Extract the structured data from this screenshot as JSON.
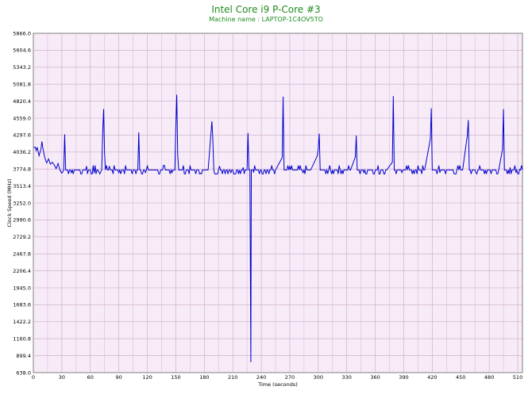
{
  "colors": {
    "title": "#1e8c1e",
    "plot_background": "#f7ebf7",
    "grid": "#c9a8c9",
    "line": "#0000cc"
  },
  "chart_data": {
    "type": "line",
    "title": "Intel Core i9 P-Core #3",
    "subtitle": "Machine name : LAPTOP-1C4OV5TO",
    "xlabel": "Time (seconds)",
    "ylabel": "Clock Speed (MHz)",
    "xlim": [
      0,
      515
    ],
    "ylim": [
      638.0,
      5866.0
    ],
    "x_ticks": [
      0,
      30,
      60,
      90,
      120,
      150,
      180,
      210,
      240,
      270,
      300,
      330,
      360,
      390,
      420,
      450,
      480,
      510
    ],
    "y_ticks": [
      "638.0",
      "899.4",
      "1160.8",
      "1422.2",
      "1683.6",
      "1945.0",
      "2206.4",
      "2467.8",
      "2729.2",
      "2990.6",
      "3252.0",
      "3513.4",
      "3774.8",
      "4036.2",
      "4297.6",
      "4559.0",
      "4820.4",
      "5081.8",
      "5343.2",
      "5604.6",
      "5866.0"
    ],
    "grid": true,
    "baseline": 3760,
    "series": [
      {
        "values": [
          [
            0,
            4110
          ],
          [
            2,
            4110
          ],
          [
            3,
            4060
          ],
          [
            4,
            4110
          ],
          [
            6,
            3980
          ],
          [
            8,
            4080
          ],
          [
            9,
            4200
          ],
          [
            10,
            4100
          ],
          [
            12,
            3950
          ],
          [
            14,
            3870
          ],
          [
            16,
            3930
          ],
          [
            18,
            3850
          ],
          [
            20,
            3880
          ],
          [
            22,
            3840
          ],
          [
            24,
            3780
          ],
          [
            26,
            3860
          ],
          [
            28,
            3760
          ],
          [
            30,
            3710
          ],
          [
            32,
            3760
          ],
          [
            33,
            4310
          ],
          [
            34,
            3760
          ],
          [
            40,
            3720
          ],
          [
            44,
            3760
          ],
          [
            50,
            3700
          ],
          [
            55,
            3760
          ],
          [
            56,
            3820
          ],
          [
            60,
            3760
          ],
          [
            64,
            3710
          ],
          [
            68,
            3760
          ],
          [
            70,
            3700
          ],
          [
            72,
            3760
          ],
          [
            73,
            4330
          ],
          [
            74,
            4700
          ],
          [
            75,
            4000
          ],
          [
            76,
            3760
          ],
          [
            80,
            3820
          ],
          [
            86,
            3760
          ],
          [
            90,
            3720
          ],
          [
            98,
            3760
          ],
          [
            104,
            3700
          ],
          [
            110,
            3760
          ],
          [
            111,
            4340
          ],
          [
            112,
            3760
          ],
          [
            118,
            3720
          ],
          [
            126,
            3760
          ],
          [
            132,
            3700
          ],
          [
            140,
            3760
          ],
          [
            146,
            3720
          ],
          [
            149,
            3760
          ],
          [
            150,
            4420
          ],
          [
            151,
            4920
          ],
          [
            152,
            3990
          ],
          [
            153,
            3760
          ],
          [
            160,
            3700
          ],
          [
            168,
            3760
          ],
          [
            176,
            3710
          ],
          [
            184,
            3760
          ],
          [
            188,
            4510
          ],
          [
            189,
            4220
          ],
          [
            190,
            3760
          ],
          [
            196,
            3820
          ],
          [
            200,
            3760
          ],
          [
            208,
            3720
          ],
          [
            215,
            3760
          ],
          [
            221,
            3800
          ],
          [
            225,
            3760
          ],
          [
            226,
            4330
          ],
          [
            227,
            3760
          ],
          [
            228,
            3760
          ],
          [
            229,
            800
          ],
          [
            229.5,
            3760
          ],
          [
            232,
            3720
          ],
          [
            240,
            3760
          ],
          [
            248,
            3700
          ],
          [
            255,
            3760
          ],
          [
            262,
            3950
          ],
          [
            263,
            4890
          ],
          [
            264,
            3760
          ],
          [
            270,
            3820
          ],
          [
            276,
            3760
          ],
          [
            284,
            3720
          ],
          [
            292,
            3760
          ],
          [
            299,
            3980
          ],
          [
            300,
            4090
          ],
          [
            301,
            4320
          ],
          [
            302,
            3760
          ],
          [
            310,
            3710
          ],
          [
            318,
            3760
          ],
          [
            326,
            3700
          ],
          [
            334,
            3760
          ],
          [
            339,
            3960
          ],
          [
            340,
            4290
          ],
          [
            341,
            3760
          ],
          [
            348,
            3720
          ],
          [
            356,
            3760
          ],
          [
            364,
            3700
          ],
          [
            372,
            3760
          ],
          [
            378,
            3880
          ],
          [
            379,
            4900
          ],
          [
            380,
            3760
          ],
          [
            388,
            3720
          ],
          [
            396,
            3760
          ],
          [
            404,
            3700
          ],
          [
            412,
            3760
          ],
          [
            418,
            4240
          ],
          [
            419,
            4710
          ],
          [
            420,
            3760
          ],
          [
            428,
            3720
          ],
          [
            436,
            3760
          ],
          [
            444,
            3700
          ],
          [
            452,
            3760
          ],
          [
            457,
            4300
          ],
          [
            458,
            4530
          ],
          [
            459,
            3760
          ],
          [
            466,
            3720
          ],
          [
            474,
            3760
          ],
          [
            482,
            3700
          ],
          [
            490,
            3760
          ],
          [
            494,
            4080
          ],
          [
            495,
            4700
          ],
          [
            496,
            3760
          ],
          [
            502,
            3800
          ],
          [
            508,
            3720
          ],
          [
            512,
            3770
          ],
          [
            515,
            3760
          ]
        ]
      }
    ]
  }
}
